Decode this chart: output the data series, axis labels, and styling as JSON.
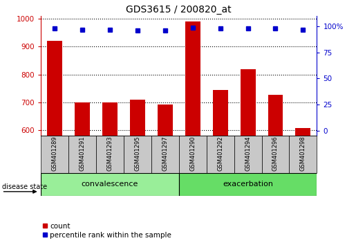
{
  "title": "GDS3615 / 200820_at",
  "samples": [
    "GSM401289",
    "GSM401291",
    "GSM401293",
    "GSM401295",
    "GSM401297",
    "GSM401290",
    "GSM401292",
    "GSM401294",
    "GSM401296",
    "GSM401298"
  ],
  "counts": [
    920,
    700,
    700,
    710,
    693,
    990,
    745,
    820,
    728,
    608
  ],
  "percentiles": [
    98,
    97,
    97,
    96,
    96,
    99,
    98,
    98,
    98,
    97
  ],
  "ylim_left": [
    580,
    1010
  ],
  "ylim_right": [
    -5.25,
    110.25
  ],
  "yticks_left": [
    600,
    700,
    800,
    900,
    1000
  ],
  "yticks_right": [
    0,
    25,
    50,
    75,
    100
  ],
  "bar_color": "#cc0000",
  "dot_color": "#0000cc",
  "label_area_color": "#c8c8c8",
  "convalescence_color": "#99ee99",
  "exacerbation_color": "#66dd66",
  "disease_state_label": "disease state",
  "legend_count": "count",
  "legend_percentile": "percentile rank within the sample",
  "n_conv": 5,
  "n_exac": 5
}
